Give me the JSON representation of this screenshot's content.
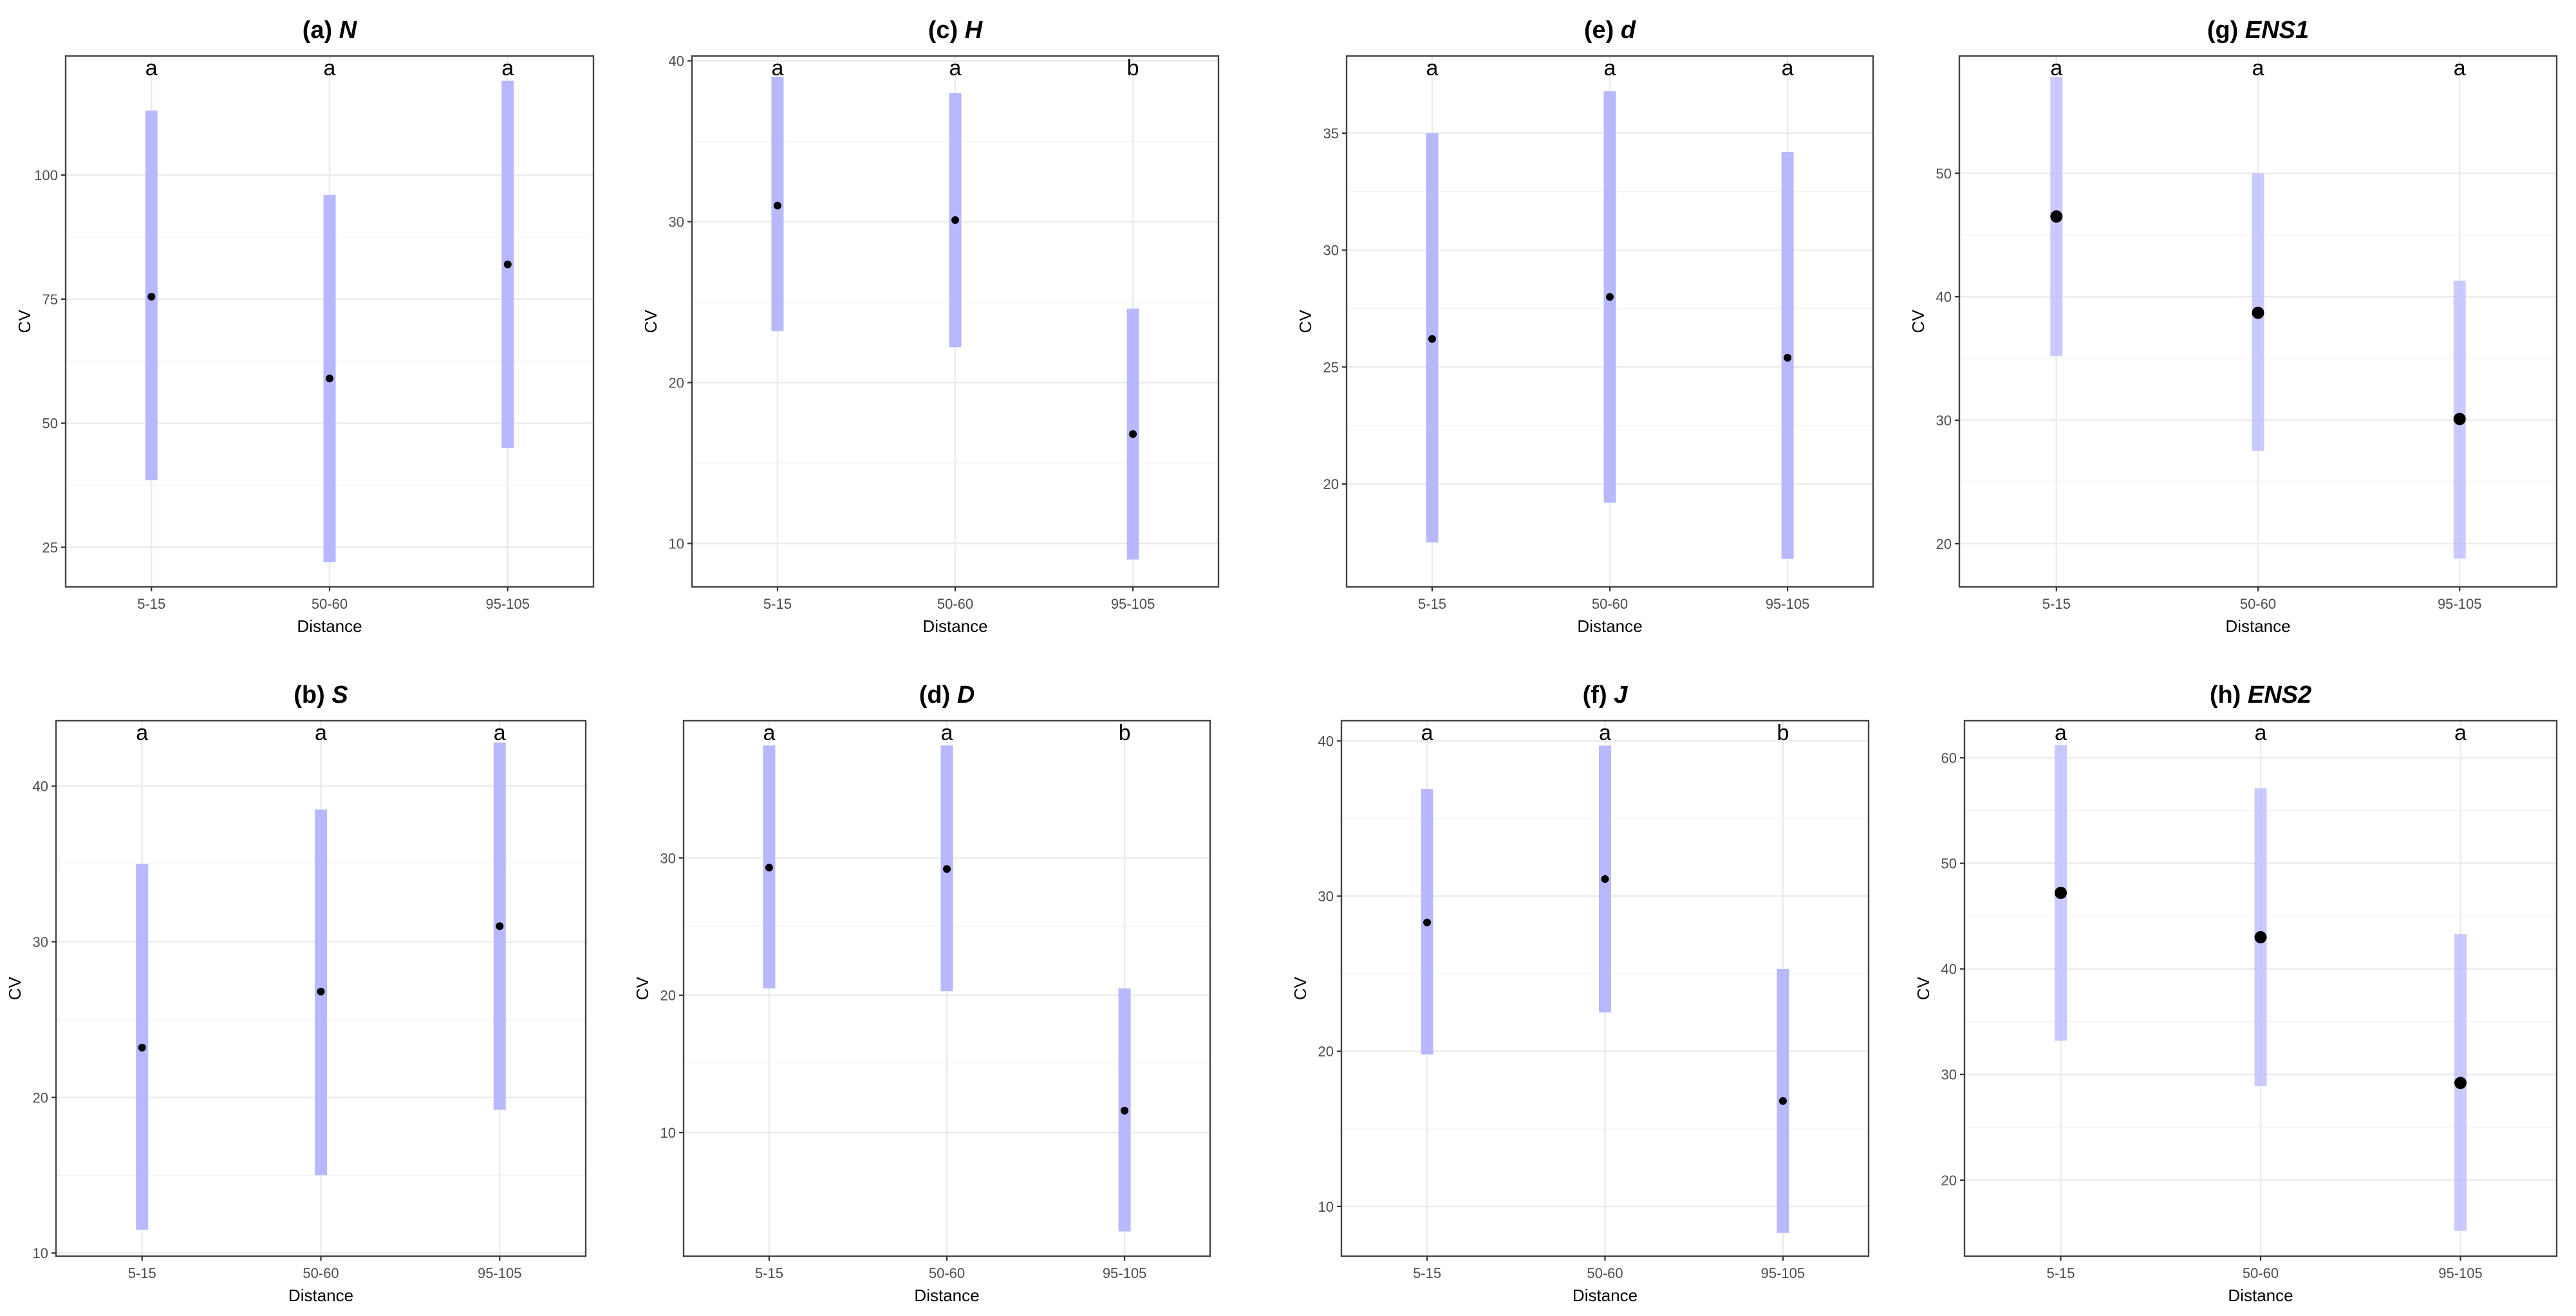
{
  "chart_data": [
    {
      "type": "pointrange",
      "panel": "a",
      "title_prefix": "(a) ",
      "title_var": "N",
      "xlabel": "Distance",
      "ylabel": "CV",
      "categories": [
        "5-15",
        "50-60",
        "95-105"
      ],
      "ylim": [
        17,
        124
      ],
      "yticks": [
        25,
        50,
        75,
        100
      ],
      "means": [
        75.5,
        59,
        82
      ],
      "lower": [
        38.5,
        22,
        45
      ],
      "upper": [
        113,
        96,
        119
      ],
      "letters": [
        "a",
        "a",
        "a"
      ],
      "point_style": "small"
    },
    {
      "type": "pointrange",
      "panel": "c",
      "title_prefix": "(c) ",
      "title_var": "H",
      "xlabel": "Distance",
      "ylabel": "CV",
      "categories": [
        "5-15",
        "50-60",
        "95-105"
      ],
      "ylim": [
        7.3,
        40.3
      ],
      "yticks": [
        10,
        20,
        30,
        40
      ],
      "means": [
        31,
        30.1,
        16.8
      ],
      "lower": [
        23.2,
        22.2,
        9
      ],
      "upper": [
        39,
        38,
        24.6
      ],
      "letters": [
        "a",
        "a",
        "b"
      ],
      "point_style": "small"
    },
    {
      "type": "pointrange",
      "panel": "e",
      "title_prefix": "(e) ",
      "title_var": "d",
      "xlabel": "Distance",
      "ylabel": "CV",
      "categories": [
        "5-15",
        "50-60",
        "95-105"
      ],
      "ylim": [
        15.6,
        38.3
      ],
      "yticks": [
        20,
        25,
        30,
        35
      ],
      "means": [
        26.2,
        28,
        25.4
      ],
      "lower": [
        17.5,
        19.2,
        16.8
      ],
      "upper": [
        35,
        36.8,
        34.2
      ],
      "letters": [
        "a",
        "a",
        "a"
      ],
      "point_style": "small"
    },
    {
      "type": "pointrange",
      "panel": "g",
      "title_prefix": "(g) ",
      "title_var": "ENS1",
      "xlabel": "Distance",
      "ylabel": "CV",
      "categories": [
        "5-15",
        "50-60",
        "95-105"
      ],
      "ylim": [
        16.5,
        59.5
      ],
      "yticks": [
        20,
        30,
        40,
        50
      ],
      "means": [
        46.5,
        38.7,
        30.1
      ],
      "lower": [
        35.2,
        27.5,
        18.8
      ],
      "upper": [
        57.8,
        50,
        41.3
      ],
      "letters": [
        "a",
        "a",
        "a"
      ],
      "point_style": "large"
    },
    {
      "type": "pointrange",
      "panel": "b",
      "title_prefix": "(b) ",
      "title_var": "S",
      "xlabel": "Distance",
      "ylabel": "CV",
      "categories": [
        "5-15",
        "50-60",
        "95-105"
      ],
      "ylim": [
        9.8,
        44.2
      ],
      "yticks": [
        10,
        20,
        30,
        40
      ],
      "means": [
        23.2,
        26.8,
        31
      ],
      "lower": [
        11.5,
        15,
        19.2
      ],
      "upper": [
        35,
        38.5,
        42.8
      ],
      "letters": [
        "a",
        "a",
        "a"
      ],
      "point_style": "small"
    },
    {
      "type": "pointrange",
      "panel": "d",
      "title_prefix": "(d) ",
      "title_var": "D",
      "xlabel": "Distance",
      "ylabel": "CV",
      "categories": [
        "5-15",
        "50-60",
        "95-105"
      ],
      "ylim": [
        1,
        40
      ],
      "yticks": [
        10,
        20,
        30
      ],
      "means": [
        29.3,
        29.2,
        11.6
      ],
      "lower": [
        20.5,
        20.3,
        2.8
      ],
      "upper": [
        38.2,
        38.2,
        20.5
      ],
      "letters": [
        "a",
        "a",
        "b"
      ],
      "point_style": "small"
    },
    {
      "type": "pointrange",
      "panel": "f",
      "title_prefix": "(f) ",
      "title_var": "J",
      "xlabel": "Distance",
      "ylabel": "CV",
      "categories": [
        "5-15",
        "50-60",
        "95-105"
      ],
      "ylim": [
        6.8,
        41.3
      ],
      "yticks": [
        10,
        20,
        30,
        40
      ],
      "means": [
        28.3,
        31.1,
        16.8
      ],
      "lower": [
        19.8,
        22.5,
        8.3
      ],
      "upper": [
        36.9,
        39.7,
        25.3
      ],
      "letters": [
        "a",
        "a",
        "b"
      ],
      "point_style": "small"
    },
    {
      "type": "pointrange",
      "panel": "h",
      "title_prefix": "(h) ",
      "title_var": "ENS2",
      "xlabel": "Distance",
      "ylabel": "CV",
      "categories": [
        "5-15",
        "50-60",
        "95-105"
      ],
      "ylim": [
        12.8,
        63.5
      ],
      "yticks": [
        20,
        30,
        40,
        50,
        60
      ],
      "means": [
        47.2,
        43,
        29.2
      ],
      "lower": [
        33.2,
        28.9,
        15.2
      ],
      "upper": [
        61.2,
        57.1,
        43.3
      ],
      "letters": [
        "a",
        "a",
        "a"
      ],
      "point_style": "large"
    }
  ],
  "colors": {
    "bar": "#b8b8ff",
    "point": "#000000",
    "grid": "#ebebeb",
    "frame": "#444444",
    "text": "#000000",
    "tick_text": "#4d4d4d"
  }
}
